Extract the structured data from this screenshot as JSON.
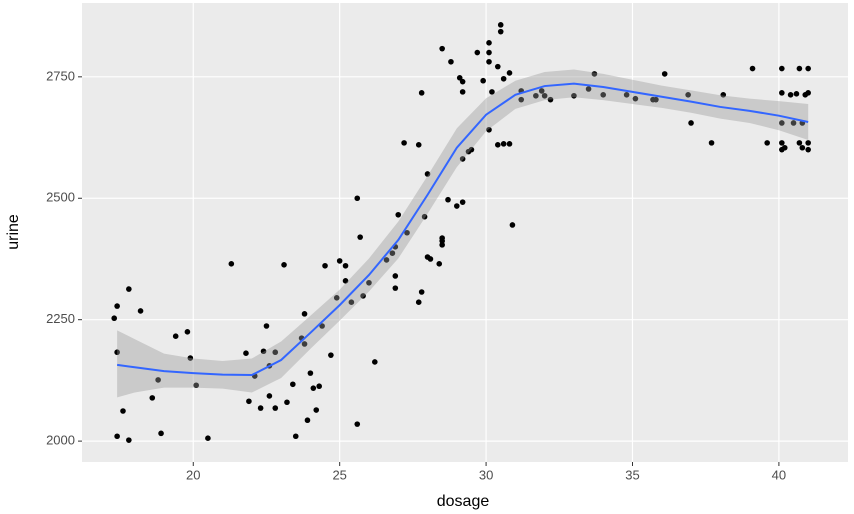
{
  "chart_data": {
    "type": "scatter",
    "x_label": "dosage",
    "y_label": "urine",
    "point_color": "#000000",
    "x": [
      17.3,
      17.4,
      17.4,
      17.4,
      17.6,
      17.8,
      17.8,
      18.2,
      18.6,
      18.8,
      18.9,
      19.4,
      19.8,
      19.9,
      20.1,
      20.5,
      21.3,
      21.8,
      21.9,
      22.1,
      22.3,
      22.4,
      22.5,
      22.6,
      22.6,
      22.8,
      22.8,
      23.1,
      23.2,
      23.4,
      23.5,
      23.7,
      23.8,
      23.8,
      23.9,
      24.0,
      24.1,
      24.2,
      24.3,
      24.4,
      24.5,
      24.7,
      24.9,
      25.0,
      25.2,
      25.2,
      25.4,
      25.6,
      25.6,
      25.7,
      25.8,
      26.0,
      26.2,
      26.6,
      26.8,
      26.9,
      26.9,
      26.9,
      27.0,
      27.2,
      27.3,
      27.7,
      27.7,
      27.8,
      27.8,
      27.9,
      28.0,
      28.0,
      28.1,
      28.4,
      28.5,
      28.5,
      28.5,
      28.5,
      28.7,
      28.8,
      29.0,
      29.1,
      29.2,
      29.2,
      29.2,
      29.2,
      29.4,
      29.5,
      29.7,
      29.9,
      30.1,
      30.1,
      30.1,
      30.1,
      30.2,
      30.4,
      30.4,
      30.5,
      30.5,
      30.6,
      30.6,
      30.8,
      30.8,
      30.9,
      31.2,
      31.2,
      31.7,
      31.9,
      32.0,
      32.2,
      33.0,
      33.5,
      33.7,
      34.0,
      34.8,
      35.1,
      35.7,
      35.8,
      36.1,
      36.9,
      37.0,
      37.7,
      38.1,
      39.1,
      39.6,
      40.1,
      40.1,
      40.1,
      40.1,
      40.1,
      40.2,
      40.4,
      40.5,
      40.6,
      40.7,
      40.7,
      40.8,
      40.8,
      40.9,
      41.0,
      41.0,
      41.0,
      41.0
    ],
    "y": [
      2253,
      2278,
      2183,
      2010,
      2062,
      2313,
      2002,
      2268,
      2089,
      2126,
      2016,
      2216,
      2225,
      2171,
      2115,
      2006,
      2365,
      2181,
      2082,
      2134,
      2068,
      2185,
      2237,
      2155,
      2093,
      2183,
      2068,
      2363,
      2080,
      2117,
      2010,
      2212,
      2200,
      2262,
      2043,
      2140,
      2109,
      2064,
      2113,
      2237,
      2361,
      2177,
      2295,
      2371,
      2330,
      2361,
      2286,
      2035,
      2500,
      2420,
      2299,
      2326,
      2163,
      2373,
      2387,
      2340,
      2315,
      2400,
      2466,
      2614,
      2429,
      2286,
      2610,
      2307,
      2717,
      2462,
      2550,
      2379,
      2375,
      2365,
      2404,
      2418,
      2412,
      2808,
      2497,
      2781,
      2484,
      2748,
      2740,
      2719,
      2581,
      2492,
      2596,
      2600,
      2800,
      2742,
      2641,
      2820,
      2800,
      2781,
      2719,
      2771,
      2610,
      2857,
      2843,
      2612,
      2746,
      2758,
      2612,
      2445,
      2721,
      2703,
      2711,
      2721,
      2711,
      2703,
      2711,
      2725,
      2756,
      2713,
      2713,
      2705,
      2703,
      2703,
      2756,
      2713,
      2655,
      2614,
      2713,
      2767,
      2614,
      2767,
      2717,
      2655,
      2614,
      2600,
      2604,
      2713,
      2655,
      2715,
      2767,
      2614,
      2655,
      2604,
      2713,
      2614,
      2767,
      2717,
      2600
    ],
    "smooth": {
      "color": "#3366ff",
      "band_color": "#999999",
      "x": [
        17.4,
        18,
        19,
        20,
        21,
        22,
        23,
        24,
        25,
        26,
        27,
        28,
        29,
        30,
        31,
        32,
        33,
        34,
        35,
        36,
        37,
        38,
        39,
        40,
        41
      ],
      "y": [
        2157,
        2152,
        2144,
        2140,
        2137,
        2136,
        2167,
        2223,
        2280,
        2342,
        2414,
        2507,
        2604,
        2672,
        2713,
        2731,
        2736,
        2729,
        2719,
        2709,
        2699,
        2688,
        2680,
        2670,
        2657
      ],
      "lower": [
        2090,
        2100,
        2110,
        2110,
        2108,
        2100,
        2130,
        2190,
        2248,
        2308,
        2376,
        2468,
        2564,
        2638,
        2684,
        2702,
        2708,
        2702,
        2694,
        2686,
        2676,
        2664,
        2655,
        2640,
        2620
      ],
      "upper": [
        2228,
        2210,
        2180,
        2170,
        2165,
        2170,
        2205,
        2258,
        2312,
        2376,
        2452,
        2546,
        2644,
        2706,
        2742,
        2760,
        2765,
        2756,
        2744,
        2732,
        2722,
        2712,
        2705,
        2700,
        2694
      ]
    },
    "xlim": [
      16.2,
      42.36
    ],
    "ylim": [
      1957,
      2902
    ],
    "xticks": [
      20,
      25,
      30,
      35,
      40
    ],
    "yticks": [
      2000,
      2250,
      2500,
      2750
    ],
    "grid": true
  }
}
